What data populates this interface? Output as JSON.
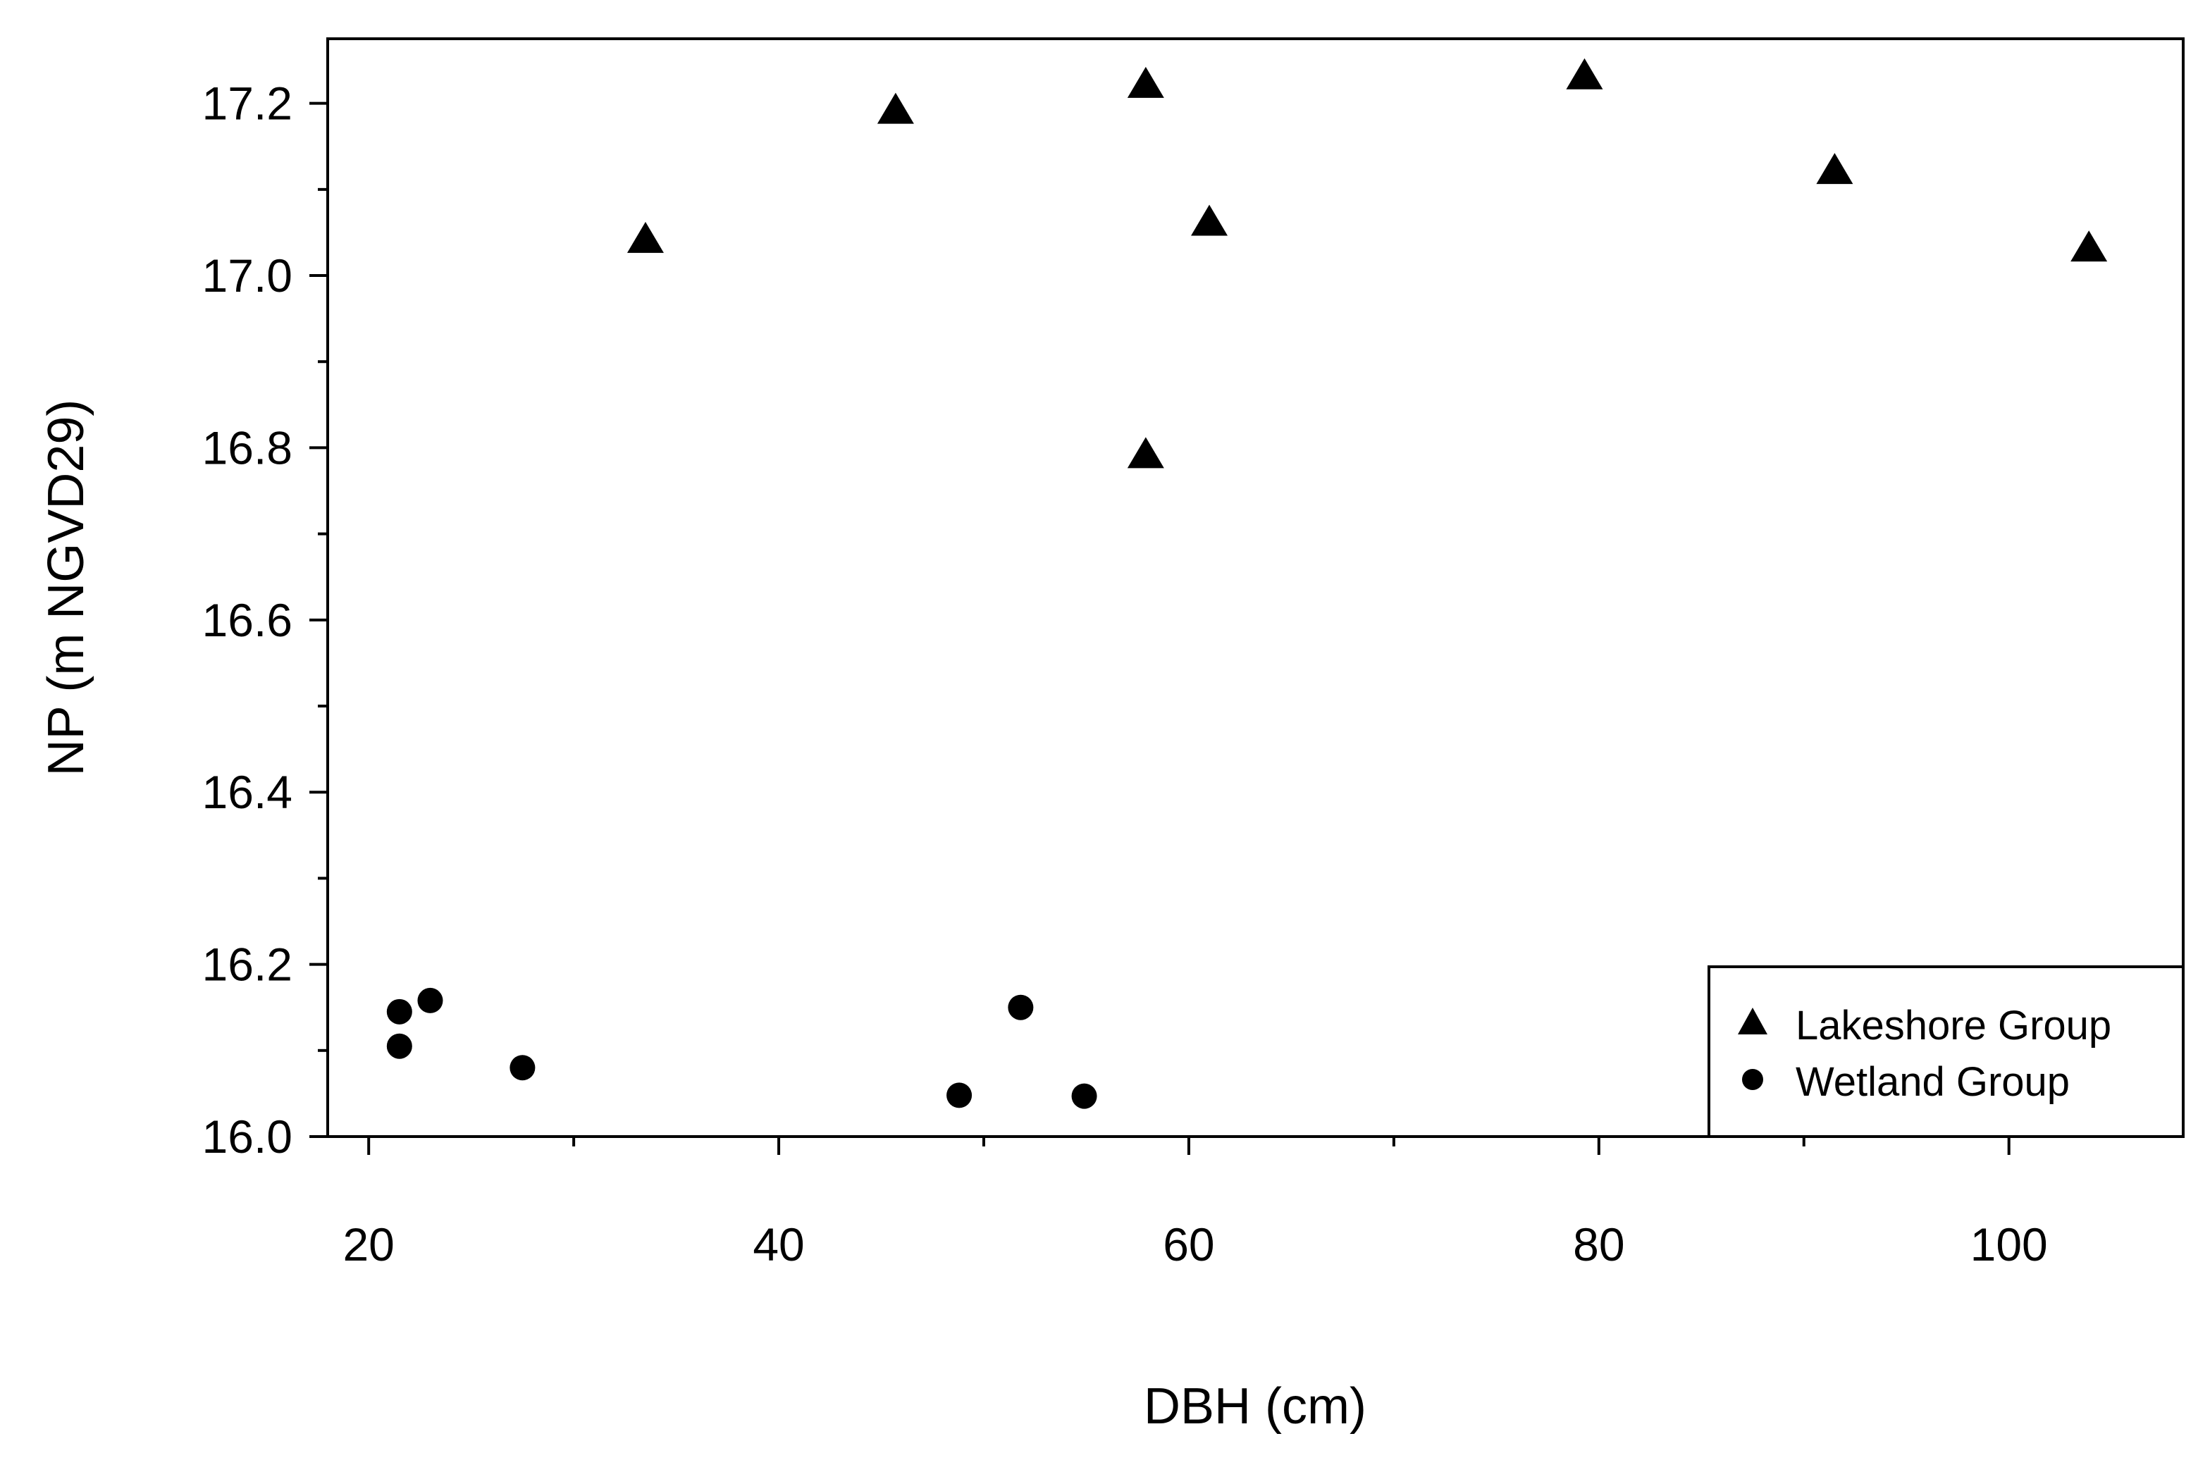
{
  "chart_data": {
    "type": "scatter",
    "title": "",
    "xlabel": "DBH (cm)",
    "ylabel": "NP (m NGVD29)",
    "xlim": [
      18,
      108.5
    ],
    "ylim": [
      16.0,
      17.275
    ],
    "xticks": [
      "20",
      "40",
      "60",
      "80",
      "100"
    ],
    "yticks": [
      "16.0",
      "16.2",
      "16.4",
      "16.6",
      "16.8",
      "17.0",
      "17.2"
    ],
    "xtick_values": [
      20,
      40,
      60,
      80,
      100
    ],
    "ytick_values": [
      16.0,
      16.2,
      16.4,
      16.6,
      16.8,
      17.0,
      17.2
    ],
    "grid": false,
    "legend_position": "bottom-right",
    "series": [
      {
        "name": "Lakeshore Group",
        "marker": "triangle",
        "color": "#000000",
        "points": [
          {
            "x": 33.5,
            "y": 17.04
          },
          {
            "x": 45.7,
            "y": 17.19
          },
          {
            "x": 57.9,
            "y": 17.22
          },
          {
            "x": 57.9,
            "y": 16.79
          },
          {
            "x": 61.0,
            "y": 17.06
          },
          {
            "x": 79.3,
            "y": 17.23
          },
          {
            "x": 91.5,
            "y": 17.12
          },
          {
            "x": 103.9,
            "y": 17.03
          }
        ]
      },
      {
        "name": "Wetland Group",
        "marker": "circle",
        "color": "#000000",
        "points": [
          {
            "x": 21.5,
            "y": 16.145
          },
          {
            "x": 21.5,
            "y": 16.105
          },
          {
            "x": 23.0,
            "y": 16.158
          },
          {
            "x": 27.5,
            "y": 16.08
          },
          {
            "x": 48.8,
            "y": 16.048
          },
          {
            "x": 51.8,
            "y": 16.15
          },
          {
            "x": 54.9,
            "y": 16.047
          }
        ]
      }
    ]
  }
}
